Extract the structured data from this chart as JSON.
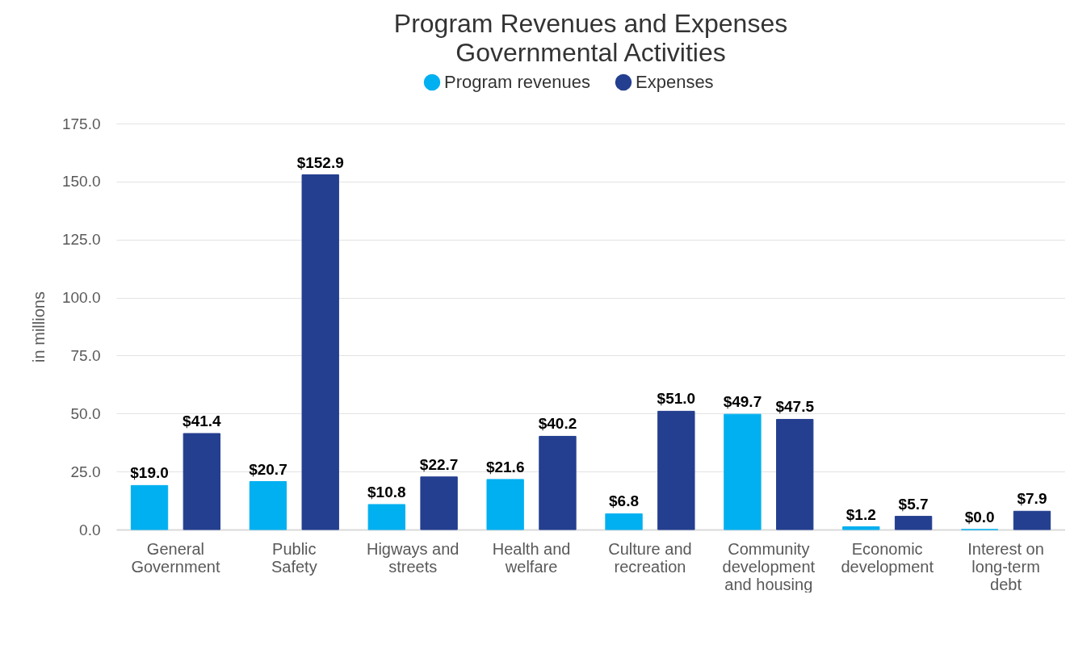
{
  "chart_data": {
    "type": "bar",
    "title": "Program Revenues and Expenses",
    "subtitle": "Governmental Activities",
    "ylabel": "in millions",
    "categories": [
      "General Government",
      "Public Safety",
      "Higways and streets",
      "Health and welfare",
      "Culture and recreation",
      "Community development and housing",
      "Economic development",
      "Interest on long-term debt"
    ],
    "series": [
      {
        "name": "Program revenues",
        "color": "#00b0f0",
        "values": [
          19.0,
          20.7,
          10.8,
          21.6,
          6.8,
          49.7,
          1.2,
          0.0
        ],
        "value_labels": [
          "$19.0",
          "$20.7",
          "$10.8",
          "$21.6",
          "$6.8",
          "$49.7",
          "$1.2",
          "$0.0"
        ]
      },
      {
        "name": "Expenses",
        "color": "#243f8f",
        "values": [
          41.4,
          152.9,
          22.7,
          40.2,
          51.0,
          47.5,
          5.7,
          7.9
        ],
        "value_labels": [
          "$41.4",
          "$152.9",
          "$22.7",
          "$40.2",
          "$51.0",
          "$47.5",
          "$5.7",
          "$7.9"
        ]
      }
    ],
    "ylim": [
      0,
      175
    ],
    "yticks": [
      {
        "value": 0,
        "label": "0.0"
      },
      {
        "value": 25,
        "label": "25.0"
      },
      {
        "value": 50,
        "label": "50.0"
      },
      {
        "value": 75,
        "label": "75.0"
      },
      {
        "value": 100,
        "label": "100.0"
      },
      {
        "value": 125,
        "label": "125.0"
      },
      {
        "value": 150,
        "label": "150.0"
      },
      {
        "value": 175,
        "label": "175.0"
      }
    ],
    "grid": "y",
    "legend": "top"
  }
}
